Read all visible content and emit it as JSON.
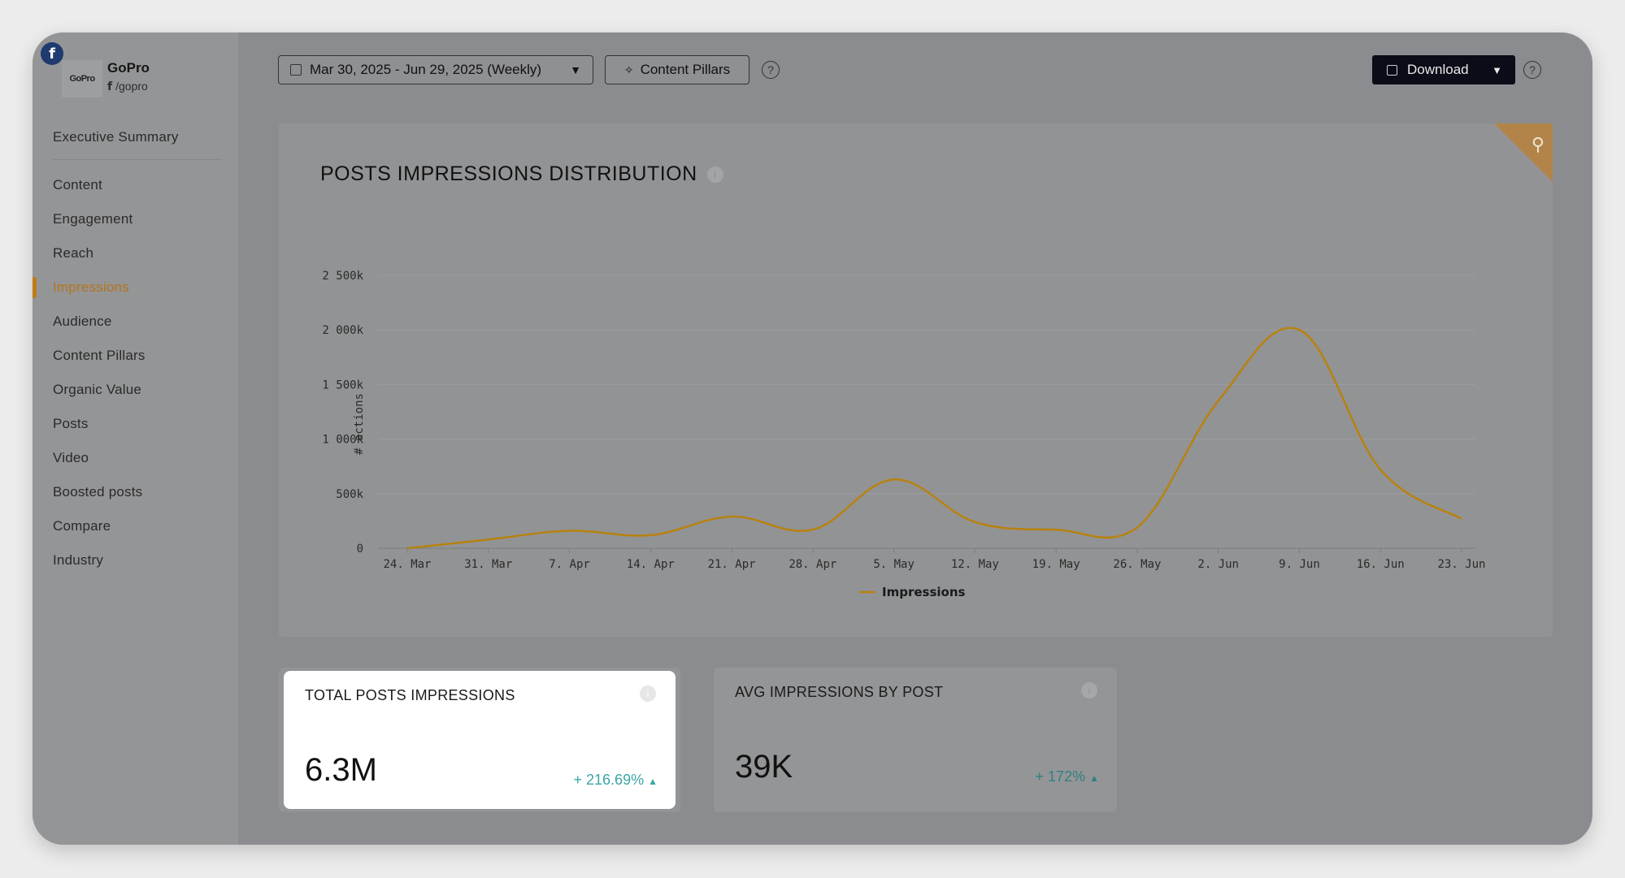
{
  "account": {
    "name": "GoPro",
    "handle": "/gopro",
    "logo_text": "GoPro",
    "network_icon": "facebook-icon",
    "network_letter": "f"
  },
  "sidebar": {
    "top_item": "Executive Summary",
    "items": [
      {
        "label": "Content",
        "active": false
      },
      {
        "label": "Engagement",
        "active": false
      },
      {
        "label": "Reach",
        "active": false
      },
      {
        "label": "Impressions",
        "active": true
      },
      {
        "label": "Audience",
        "active": false
      },
      {
        "label": "Content Pillars",
        "active": false
      },
      {
        "label": "Organic Value",
        "active": false
      },
      {
        "label": "Posts",
        "active": false
      },
      {
        "label": "Video",
        "active": false
      },
      {
        "label": "Boosted posts",
        "active": false
      },
      {
        "label": "Compare",
        "active": false
      },
      {
        "label": "Industry",
        "active": false
      }
    ]
  },
  "toolbar": {
    "date_range": "Mar 30, 2025 - Jun 29, 2025 (Weekly)",
    "content_pillars": "Content Pillars",
    "download": "Download",
    "help": "?"
  },
  "chart_card": {
    "title": "POSTS IMPRESSIONS DISTRIBUTION",
    "info": "i"
  },
  "chart_data": {
    "type": "line",
    "title": "POSTS IMPRESSIONS DISTRIBUTION",
    "xlabel": "",
    "ylabel": "# actions",
    "x": [
      "24. Mar",
      "31. Mar",
      "7. Apr",
      "14. Apr",
      "21. Apr",
      "28. Apr",
      "5. May",
      "12. May",
      "19. May",
      "26. May",
      "2. Jun",
      "9. Jun",
      "16. Jun",
      "23. Jun"
    ],
    "y_ticks": [
      "0",
      "500k",
      "1 000k",
      "1 500k",
      "2 000k",
      "2 500k"
    ],
    "ylim": [
      0,
      2500000
    ],
    "grid": true,
    "legend": "bottom-center",
    "color": "#b8820f",
    "series": [
      {
        "name": "Impressions",
        "values": [
          0,
          80000,
          160000,
          120000,
          290000,
          170000,
          630000,
          240000,
          170000,
          190000,
          1350000,
          2000000,
          720000,
          270000
        ]
      }
    ]
  },
  "stats": [
    {
      "label": "TOTAL POSTS IMPRESSIONS",
      "value": "6.3M",
      "change": "+ 216.69%",
      "highlighted": true
    },
    {
      "label": "AVG IMPRESSIONS BY POST",
      "value": "39K",
      "change": "+ 172%",
      "highlighted": false
    }
  ]
}
